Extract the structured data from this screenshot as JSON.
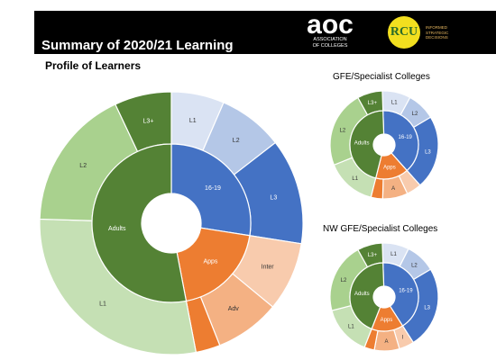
{
  "header": {
    "title": "Summary of 2020/21 Learning",
    "aoc_logo_text": "aoc",
    "aoc_logo_subtext": "ASSOCIATION\nOF COLLEGES",
    "rcu_logo_text": "RCU",
    "rcu_tagline": "INFORMED\nSTRATEGIC\nDECISIONS"
  },
  "profile_title": "Profile of Learners",
  "gfe_title": "GFE/Specialist Colleges",
  "nw_title": "NW GFE/Specialist Colleges",
  "colors": {
    "blue": "#4472c4",
    "blue_light": "#b4c7e7",
    "blue_pale": "#dae3f3",
    "orange": "#ed7d31",
    "orange_light": "#f4b183",
    "orange_pale": "#f8cbad",
    "green": "#548235",
    "green_light": "#a9d18e",
    "green_pale": "#c5e0b4"
  },
  "chart_data": [
    {
      "type": "sunburst",
      "title": "Profile of Learners",
      "inner": [
        {
          "label": "16-19",
          "value": 27.5,
          "color": "#4472c4"
        },
        {
          "label": "Apps",
          "value": 19.5,
          "color": "#ed7d31"
        },
        {
          "label": "Adults",
          "value": 53.0,
          "color": "#548235"
        }
      ],
      "outer": [
        {
          "parent": "16-19",
          "label": "L1",
          "value": 6.5,
          "color": "#dae3f3"
        },
        {
          "parent": "16-19",
          "label": "L2",
          "value": 8.0,
          "color": "#b4c7e7"
        },
        {
          "parent": "16-19",
          "label": "L3",
          "value": 13.0,
          "color": "#4472c4"
        },
        {
          "parent": "Apps",
          "label": "Inter",
          "value": 8.5,
          "color": "#f8cbad"
        },
        {
          "parent": "Apps",
          "label": "Adv",
          "value": 8.0,
          "color": "#f4b183"
        },
        {
          "parent": "Apps",
          "label": "",
          "value": 3.0,
          "color": "#ed7d31"
        },
        {
          "parent": "Adults",
          "label": "L1",
          "value": 28.5,
          "color": "#c5e0b4"
        },
        {
          "parent": "Adults",
          "label": "L2",
          "value": 17.5,
          "color": "#a9d18e"
        },
        {
          "parent": "Adults",
          "label": "L3+",
          "value": 7.0,
          "color": "#548235"
        }
      ]
    },
    {
      "type": "sunburst",
      "title": "GFE/Specialist Colleges",
      "inner": [
        {
          "label": "16-19",
          "value": 39.0,
          "color": "#4472c4"
        },
        {
          "label": "Apps",
          "value": 15.5,
          "color": "#ed7d31"
        },
        {
          "label": "Adults",
          "value": 45.5,
          "color": "#548235"
        }
      ],
      "outer": [
        {
          "parent": "16-19",
          "label": "L1",
          "value": 8.5,
          "color": "#dae3f3"
        },
        {
          "parent": "16-19",
          "label": "L2",
          "value": 8.5,
          "color": "#b4c7e7"
        },
        {
          "parent": "16-19",
          "label": "L3",
          "value": 22.0,
          "color": "#4472c4"
        },
        {
          "parent": "Apps",
          "label": "",
          "value": 4.5,
          "color": "#f8cbad"
        },
        {
          "parent": "Apps",
          "label": "A",
          "value": 7.5,
          "color": "#f4b183"
        },
        {
          "parent": "Apps",
          "label": "",
          "value": 3.5,
          "color": "#ed7d31"
        },
        {
          "parent": "Adults",
          "label": "L1",
          "value": 15.0,
          "color": "#c5e0b4"
        },
        {
          "parent": "Adults",
          "label": "L2",
          "value": 23.0,
          "color": "#a9d18e"
        },
        {
          "parent": "Adults",
          "label": "L3+",
          "value": 7.5,
          "color": "#548235"
        }
      ]
    },
    {
      "type": "sunburst",
      "title": "NW GFE/Specialist Colleges",
      "inner": [
        {
          "label": "16-19",
          "value": 41.5,
          "color": "#4472c4"
        },
        {
          "label": "Apps",
          "value": 15.0,
          "color": "#ed7d31"
        },
        {
          "label": "Adults",
          "value": 43.5,
          "color": "#548235"
        }
      ],
      "outer": [
        {
          "parent": "16-19",
          "label": "L1",
          "value": 8.0,
          "color": "#dae3f3"
        },
        {
          "parent": "16-19",
          "label": "L2",
          "value": 9.0,
          "color": "#b4c7e7"
        },
        {
          "parent": "16-19",
          "label": "L3",
          "value": 24.5,
          "color": "#4472c4"
        },
        {
          "parent": "Apps",
          "label": "I",
          "value": 4.5,
          "color": "#f8cbad"
        },
        {
          "parent": "Apps",
          "label": "A",
          "value": 7.5,
          "color": "#f4b183"
        },
        {
          "parent": "Apps",
          "label": "",
          "value": 3.0,
          "color": "#ed7d31"
        },
        {
          "parent": "Adults",
          "label": "L1",
          "value": 15.0,
          "color": "#c5e0b4"
        },
        {
          "parent": "Adults",
          "label": "L2",
          "value": 21.0,
          "color": "#a9d18e"
        },
        {
          "parent": "Adults",
          "label": "L3+",
          "value": 7.5,
          "color": "#548235"
        }
      ]
    }
  ]
}
